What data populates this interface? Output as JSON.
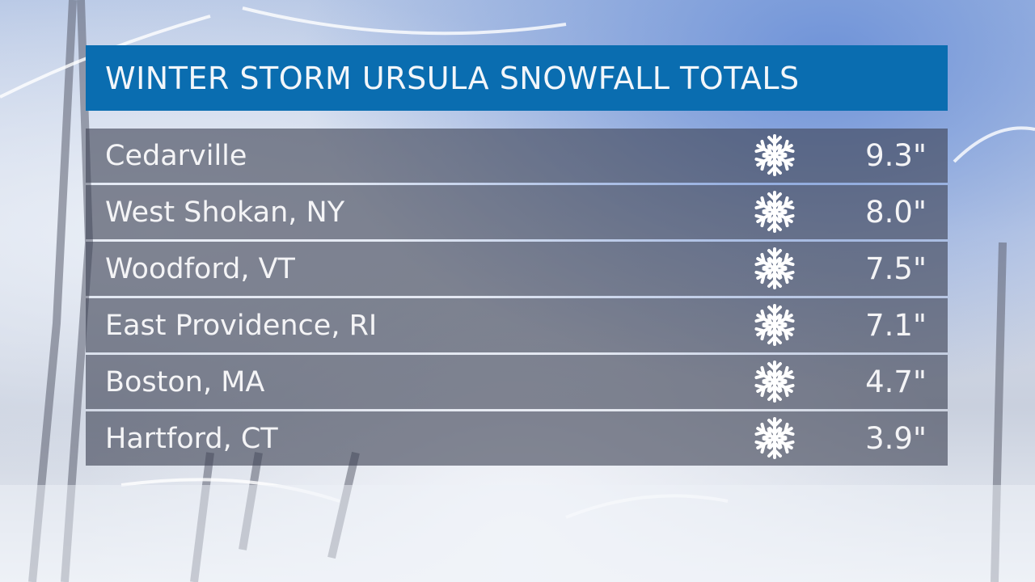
{
  "chart_data": {
    "type": "table",
    "title": "WINTER STORM URSULA SNOWFALL TOTALS",
    "rows": [
      {
        "location": "Cedarville",
        "snowfall": "9.3\""
      },
      {
        "location": "West Shokan, NY",
        "snowfall": "8.0\""
      },
      {
        "location": "Woodford, VT",
        "snowfall": "7.5\""
      },
      {
        "location": "East Providence, RI",
        "snowfall": "7.1\""
      },
      {
        "location": "Boston, MA",
        "snowfall": "4.7\""
      },
      {
        "location": "Hartford, CT",
        "snowfall": "3.9\""
      }
    ],
    "values_inches": [
      9.3,
      8.0,
      7.5,
      7.1,
      4.7,
      3.9
    ],
    "row_icon": "snowflake-icon"
  },
  "colors": {
    "header": "#0a6db0",
    "row": "#3e4254"
  }
}
